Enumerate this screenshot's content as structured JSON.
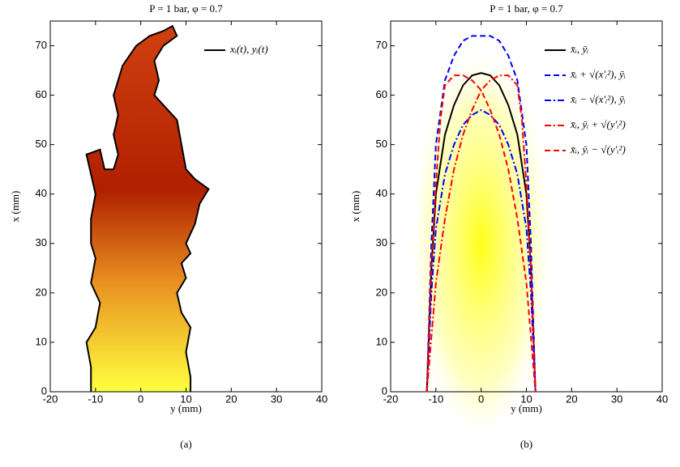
{
  "chart_data": [
    {
      "type": "line",
      "title": "P = 1 bar, φ = 0.7",
      "xlabel": "y (mm)",
      "ylabel": "x (mm)",
      "caption": "(a)",
      "xlim": [
        -20,
        40
      ],
      "ylim": [
        0,
        75
      ],
      "xticks": [
        -20,
        -10,
        0,
        10,
        20,
        30,
        40
      ],
      "yticks": [
        0,
        10,
        20,
        30,
        40,
        50,
        60,
        70
      ],
      "legend": "upper right",
      "series": [
        {
          "name": "xᵢ(t), yᵢ(t)",
          "color": "#000000",
          "dash": "solid",
          "x": [
            -11,
            -11,
            -12,
            -10,
            -9,
            -11,
            -10,
            -11,
            -11,
            -10,
            -11,
            -12,
            -9,
            -8,
            -6,
            -5,
            -6,
            -5,
            -6,
            -4,
            -1,
            2,
            5,
            7,
            8,
            5,
            3,
            4,
            3,
            6,
            8,
            9,
            10,
            12,
            15,
            13,
            12,
            10,
            11,
            9,
            10,
            8,
            9,
            11,
            10,
            11,
            11
          ],
          "values": [
            0,
            5,
            10,
            13,
            18,
            22,
            27,
            30,
            35,
            40,
            44,
            48,
            49,
            45,
            45,
            48,
            52,
            56,
            60,
            66,
            70,
            72,
            73,
            74,
            72,
            70,
            67,
            63,
            60,
            57,
            55,
            50,
            45,
            43,
            41,
            38,
            34,
            30,
            28,
            26,
            23,
            20,
            16,
            13,
            8,
            3,
            0
          ]
        }
      ]
    },
    {
      "type": "line",
      "title": "P = 1 bar, φ = 0.7",
      "xlabel": "y (mm)",
      "ylabel": "x (mm)",
      "caption": "(b)",
      "xlim": [
        -20,
        40
      ],
      "ylim": [
        0,
        75
      ],
      "xticks": [
        -20,
        -10,
        0,
        10,
        20,
        30,
        40
      ],
      "yticks": [
        0,
        10,
        20,
        30,
        40,
        50,
        60,
        70
      ],
      "legend": "upper right",
      "series": [
        {
          "name": "x̄ᵢ, ȳᵢ",
          "color": "#000000",
          "dash": "solid",
          "x": [
            -12,
            -11,
            -10,
            -8,
            -6,
            -4,
            -2,
            0,
            2,
            4,
            6,
            8,
            10,
            11,
            12
          ],
          "values": [
            0,
            25,
            40,
            52,
            58,
            62,
            64,
            64.5,
            64,
            62,
            58,
            52,
            40,
            25,
            0
          ]
        },
        {
          "name": "x̄ᵢ + √(x′ᵢ²), ȳᵢ",
          "color": "#0000ff",
          "dash": "dashed",
          "x": [
            -12,
            -11,
            -10,
            -8,
            -6,
            -4,
            -2,
            0,
            2,
            4,
            6,
            8,
            10,
            11,
            12
          ],
          "values": [
            0,
            30,
            50,
            63,
            68,
            71,
            72,
            72,
            72,
            71,
            68,
            63,
            50,
            30,
            0
          ]
        },
        {
          "name": "x̄ᵢ − √(x′ᵢ²), ȳᵢ",
          "color": "#0000ff",
          "dash": "dashdot",
          "x": [
            -12,
            -11,
            -10,
            -8,
            -6,
            -4,
            -2,
            0,
            2,
            4,
            6,
            8,
            10,
            11,
            12
          ],
          "values": [
            0,
            20,
            33,
            44,
            50,
            54,
            56,
            57,
            56,
            54,
            50,
            44,
            33,
            20,
            0
          ]
        },
        {
          "name": "x̄ᵢ, ȳᵢ + √(y′ᵢ²)",
          "color": "#ff0000",
          "dash": "dashdot",
          "x": [
            -12,
            -10,
            -8,
            -6,
            -4,
            -2,
            0,
            2,
            4,
            6,
            8,
            9,
            10,
            11,
            12
          ],
          "values": [
            0,
            22,
            35,
            45,
            52,
            57,
            61,
            63,
            64,
            64,
            62,
            55,
            42,
            25,
            0
          ]
        },
        {
          "name": "x̄ᵢ, ȳᵢ − √(y′ᵢ²)",
          "color": "#ff0000",
          "dash": "dashed",
          "x": [
            -12,
            -11,
            -10,
            -9,
            -8,
            -6,
            -4,
            -2,
            0,
            2,
            4,
            6,
            8,
            10,
            12
          ],
          "values": [
            0,
            25,
            42,
            55,
            62,
            64,
            64,
            63,
            61,
            57,
            52,
            45,
            35,
            22,
            0
          ]
        }
      ]
    }
  ]
}
